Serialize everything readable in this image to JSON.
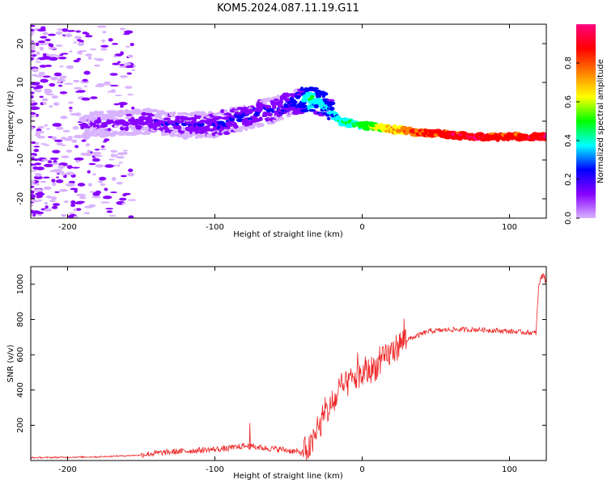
{
  "title": "KOM5.2024.087.11.19.G11",
  "chart_data": [
    {
      "type": "heatmap",
      "xlabel": "Height of straight line (km)",
      "ylabel": "Frequency (Hz)",
      "xlim": [
        -225,
        125
      ],
      "ylim": [
        -25,
        25
      ],
      "xticks": [
        -200,
        -100,
        0,
        100
      ],
      "yticks": [
        -20,
        -10,
        0,
        10,
        20
      ],
      "colorbar": {
        "label": "Normalized spectral amplitude",
        "range": [
          0,
          1
        ],
        "ticks": [
          0.0,
          0.2,
          0.4,
          0.6,
          0.8
        ],
        "colors": [
          "#d9b3ff",
          "#8800ff",
          "#0000ff",
          "#00ffff",
          "#00ff00",
          "#ffff00",
          "#ff8000",
          "#ff0000",
          "#ff0080"
        ]
      },
      "ridge": {
        "x": [
          -185,
          -150,
          -120,
          -100,
          -80,
          -60,
          -45,
          -35,
          -25,
          -15,
          0,
          20,
          40,
          60,
          80,
          100,
          125
        ],
        "y": [
          -1,
          0,
          -1,
          -1,
          1,
          3,
          5,
          6,
          4,
          0,
          -1,
          -2,
          -3,
          -3.5,
          -4,
          -4,
          -4
        ],
        "amplitude": [
          0.1,
          0.15,
          0.18,
          0.2,
          0.22,
          0.22,
          0.25,
          0.45,
          0.35,
          0.4,
          0.5,
          0.7,
          0.85,
          0.9,
          0.92,
          0.85,
          0.95
        ]
      }
    },
    {
      "type": "line",
      "xlabel": "Height of straight line (km)",
      "ylabel": "SNR (v/v)",
      "xlim": [
        -225,
        125
      ],
      "ylim": [
        0,
        1100
      ],
      "xticks": [
        -200,
        -100,
        0,
        100
      ],
      "yticks": [
        200,
        400,
        600,
        800,
        1000
      ],
      "color": "#ee2222",
      "series": [
        {
          "x": [
            -225,
            -180,
            -150,
            -130,
            -110,
            -90,
            -80,
            -70,
            -55,
            -40,
            -35,
            -30,
            -25,
            -20,
            -15,
            -10,
            -5,
            0,
            10,
            20,
            30,
            45,
            60,
            80,
            100,
            110,
            118,
            120,
            123,
            125
          ],
          "y": [
            15,
            20,
            30,
            45,
            55,
            65,
            80,
            70,
            60,
            40,
            60,
            150,
            250,
            300,
            380,
            420,
            450,
            470,
            520,
            600,
            680,
            730,
            740,
            740,
            730,
            725,
            720,
            1000,
            1060,
            1000
          ]
        }
      ]
    }
  ]
}
